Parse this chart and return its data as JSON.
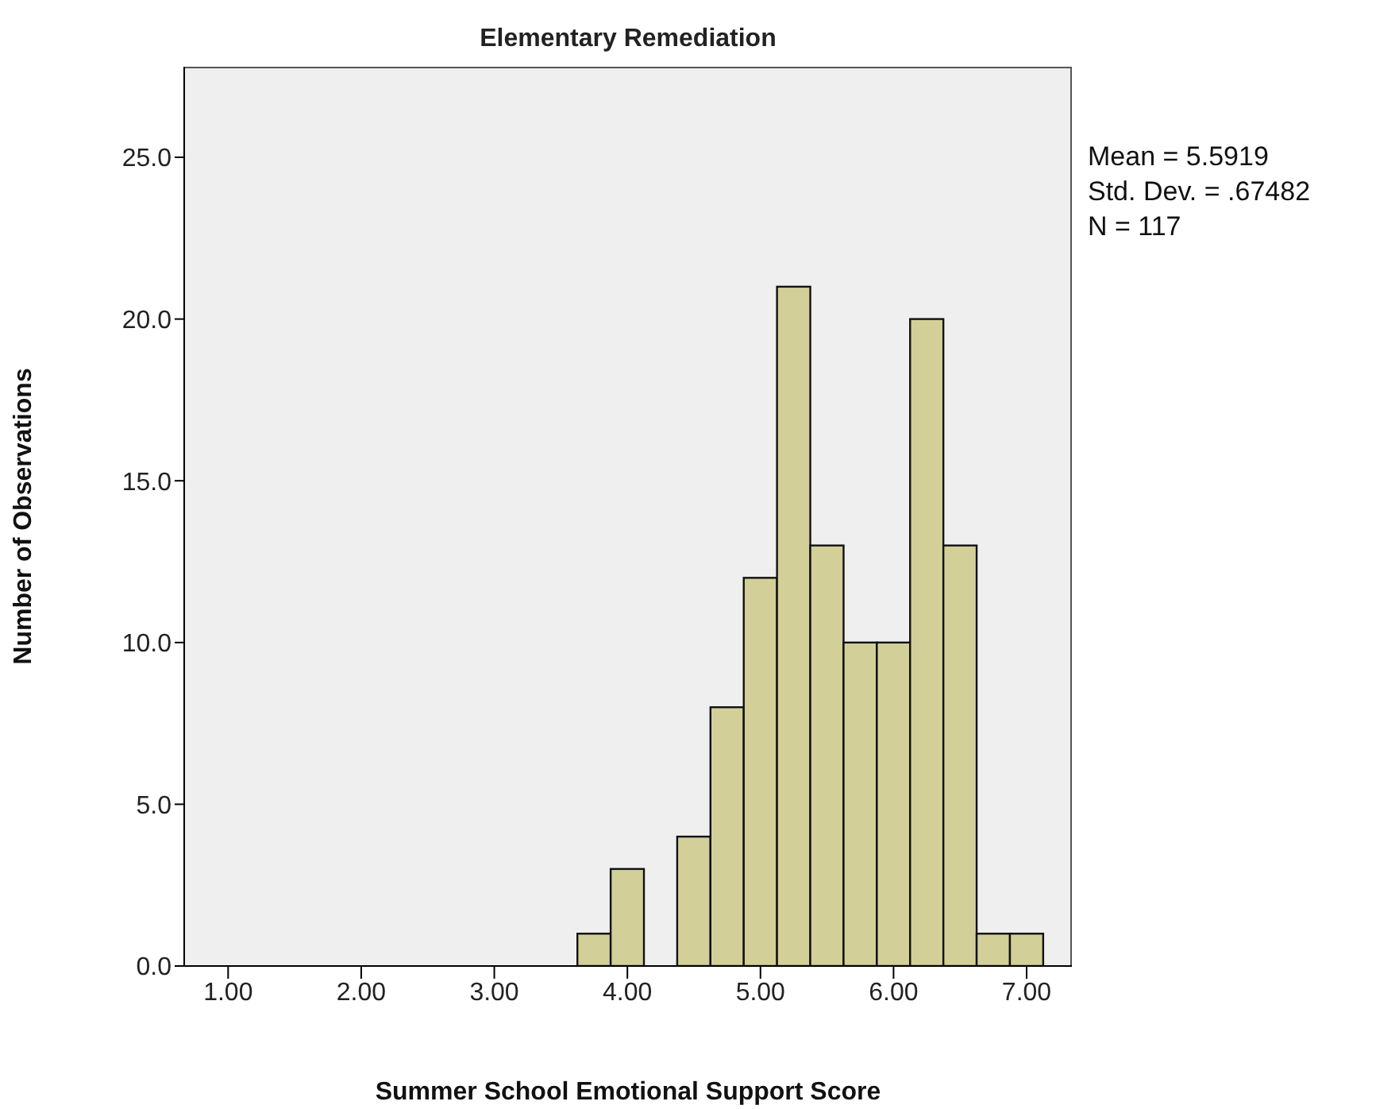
{
  "chart_data": {
    "type": "histogram",
    "title": "Elementary Remediation",
    "xlabel": "Summer School Emotional Support Score",
    "ylabel": "Number of Observations",
    "annotations": [
      "Mean = 5.5919",
      "Std. Dev. = .67482",
      "N = 117"
    ],
    "bins": [
      3.625,
      3.875,
      4.125,
      4.375,
      4.625,
      4.875,
      5.125,
      5.375,
      5.625,
      5.875,
      6.125,
      6.375,
      6.625,
      6.875,
      7.125
    ],
    "values": [
      1,
      3,
      0,
      4,
      8,
      12,
      21,
      13,
      10,
      10,
      20,
      13,
      1,
      1
    ],
    "color": "#d3cf98",
    "xlim": [
      0.67,
      7.34
    ],
    "xticks": [
      {
        "value": 1,
        "label": "1.00"
      },
      {
        "value": 2,
        "label": "2.00"
      },
      {
        "value": 3,
        "label": "3.00"
      },
      {
        "value": 4,
        "label": "4.00"
      },
      {
        "value": 5,
        "label": "5.00"
      },
      {
        "value": 6,
        "label": "6.00"
      },
      {
        "value": 7,
        "label": "7.00"
      }
    ],
    "ylim": [
      0,
      27.8
    ],
    "yticks": [
      {
        "value": 0,
        "label": "0.0"
      },
      {
        "value": 5,
        "label": "5.0"
      },
      {
        "value": 10,
        "label": "10.0"
      },
      {
        "value": 15,
        "label": "15.0"
      },
      {
        "value": 20,
        "label": "20.0"
      },
      {
        "value": 25,
        "label": "25.0"
      }
    ],
    "grid": false,
    "legend": false
  }
}
